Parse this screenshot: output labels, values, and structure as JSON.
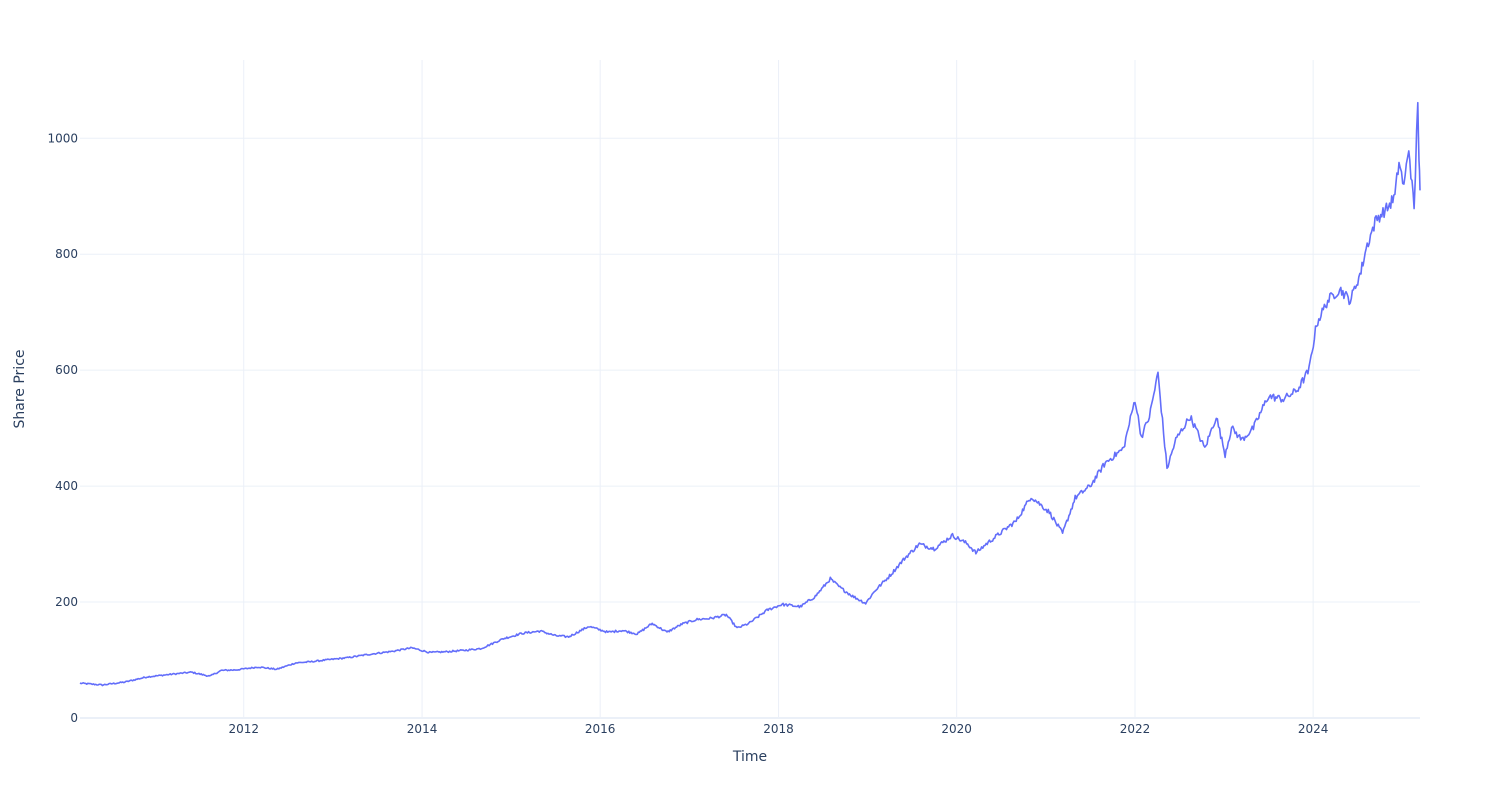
{
  "chart_data": {
    "type": "line",
    "title": "",
    "xlabel": "Time",
    "ylabel": "Share Price",
    "xlim": [
      "2010-03-01",
      "2025-03-14"
    ],
    "ylim": [
      0,
      1135
    ],
    "grid": true,
    "legend": "none",
    "x_ticks": [
      "2012",
      "2014",
      "2016",
      "2018",
      "2020",
      "2022",
      "2024"
    ],
    "y_ticks": [
      "0",
      "200",
      "400",
      "600",
      "800",
      "1000"
    ],
    "colors": {
      "line": "#636efa",
      "grid": "#ebf0f8",
      "text": "#2a3f5f"
    },
    "series": [
      {
        "x": [
          "2010-03-01",
          "2010-06-01",
          "2010-09-01",
          "2010-12-01",
          "2011-03-01",
          "2011-06-01",
          "2011-08-15",
          "2011-10-01",
          "2011-12-01",
          "2012-03-01",
          "2012-05-15",
          "2012-08-01",
          "2012-10-01",
          "2012-12-01",
          "2013-03-01",
          "2013-06-01",
          "2013-09-01",
          "2013-11-20",
          "2014-02-01",
          "2014-04-01",
          "2014-07-01",
          "2014-09-01",
          "2014-12-01",
          "2015-02-15",
          "2015-05-01",
          "2015-07-01",
          "2015-08-25",
          "2015-11-15",
          "2016-02-01",
          "2016-04-01",
          "2016-06-01",
          "2016-08-01",
          "2016-10-01",
          "2016-12-01",
          "2017-02-01",
          "2017-04-01",
          "2017-06-01",
          "2017-07-15",
          "2017-09-01",
          "2017-11-15",
          "2018-01-15",
          "2018-04-01",
          "2018-06-01",
          "2018-08-01",
          "2018-09-10",
          "2018-11-01",
          "2018-12-24",
          "2019-02-01",
          "2019-04-01",
          "2019-06-01",
          "2019-08-01",
          "2019-10-01",
          "2019-12-15",
          "2020-02-15",
          "2020-03-20",
          "2020-05-01",
          "2020-07-01",
          "2020-09-01",
          "2020-11-01",
          "2020-12-15",
          "2021-01-15",
          "2021-03-10",
          "2021-05-01",
          "2021-07-01",
          "2021-09-01",
          "2021-11-15",
          "2022-01-01",
          "2022-01-27",
          "2022-03-01",
          "2022-04-05",
          "2022-05-12",
          "2022-06-17",
          "2022-08-15",
          "2022-10-14",
          "2022-11-30",
          "2023-01-05",
          "2023-02-01",
          "2023-03-15",
          "2023-05-01",
          "2023-07-01",
          "2023-09-01",
          "2023-10-27",
          "2023-12-15",
          "2024-01-15",
          "2024-03-01",
          "2024-04-19",
          "2024-06-01",
          "2024-07-15",
          "2024-08-05",
          "2024-09-15",
          "2024-11-01",
          "2024-12-01",
          "2024-12-18",
          "2025-01-07",
          "2025-01-27",
          "2025-02-18",
          "2025-03-05",
          "2025-03-10",
          "2025-03-14"
        ],
        "y": [
          60,
          57,
          62,
          71,
          75,
          79,
          72,
          82,
          83,
          88,
          84,
          95,
          97,
          100,
          104,
          110,
          115,
          121,
          113,
          114,
          117,
          120,
          137,
          146,
          150,
          142,
          140,
          158,
          148,
          151,
          145,
          163,
          148,
          162,
          170,
          172,
          178,
          155,
          163,
          186,
          196,
          192,
          210,
          240,
          225,
          210,
          198,
          220,
          245,
          275,
          300,
          292,
          315,
          300,
          285,
          300,
          320,
          340,
          382,
          366,
          355,
          318,
          380,
          400,
          440,
          465,
          550,
          485,
          520,
          595,
          430,
          480,
          520,
          465,
          520,
          455,
          500,
          480,
          500,
          555,
          550,
          565,
          600,
          680,
          720,
          740,
          720,
          770,
          810,
          860,
          880,
          900,
          960,
          915,
          985,
          875,
          1070,
          960,
          910
        ]
      }
    ]
  }
}
